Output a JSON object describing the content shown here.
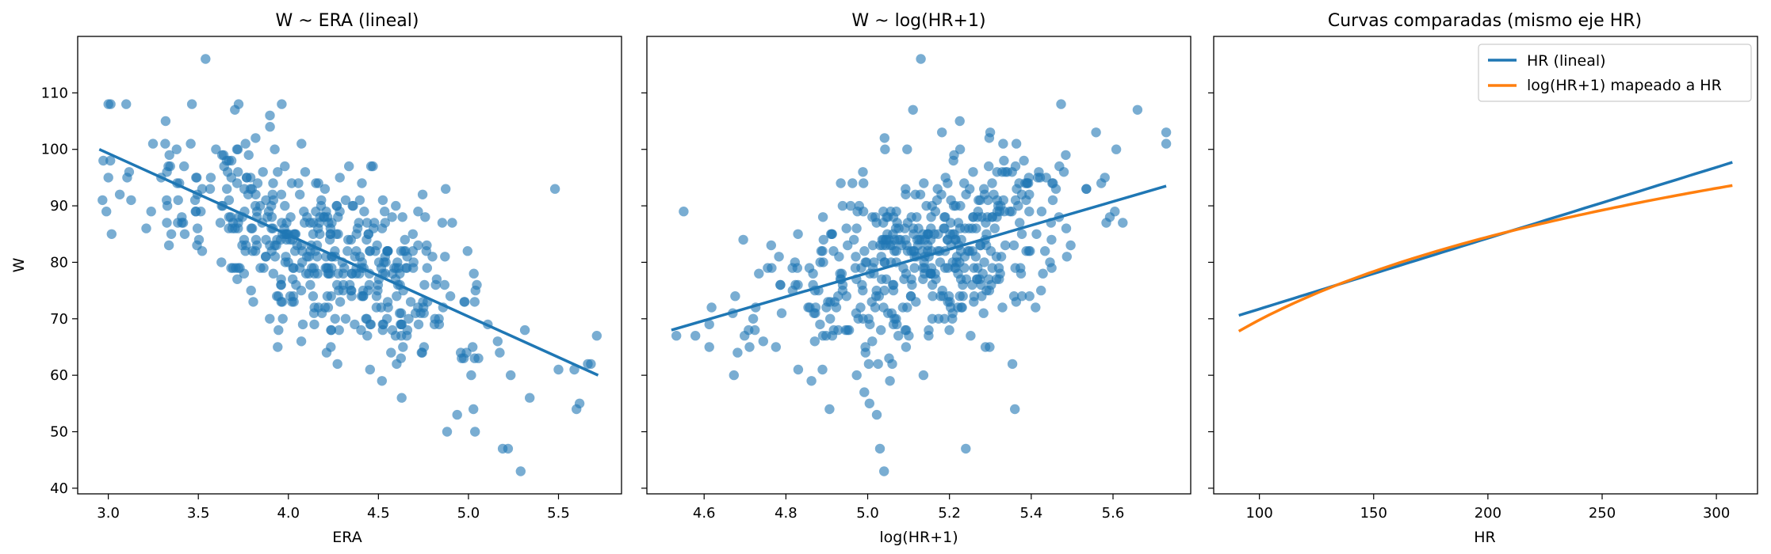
{
  "chart_data": [
    {
      "type": "scatter",
      "title": "W ~ ERA (lineal)",
      "xlabel": "ERA",
      "ylabel": "W",
      "xlim": [
        2.83,
        5.85
      ],
      "ylim": [
        39,
        120
      ],
      "xticks": [
        3.0,
        3.5,
        4.0,
        4.5,
        5.0,
        5.5
      ],
      "xtick_labels": [
        "3.0",
        "3.5",
        "4.0",
        "4.5",
        "5.0",
        "5.5"
      ],
      "yticks": [
        40,
        50,
        60,
        70,
        80,
        90,
        100,
        110
      ],
      "ytick_labels": [
        "40",
        "50",
        "60",
        "70",
        "80",
        "90",
        "100",
        "110"
      ],
      "point_color": "#1f77b4",
      "point_alpha": 0.6,
      "seed": 11,
      "n_points": 480,
      "x_range": [
        2.95,
        5.72
      ],
      "x_center": 4.2,
      "x_sd": 0.52,
      "fit_line": {
        "x": [
          2.95,
          5.72
        ],
        "y": [
          100,
          60
        ]
      },
      "noise_sd": 8,
      "outliers": [
        [
          3.54,
          116
        ],
        [
          5.19,
          47
        ],
        [
          5.22,
          47
        ],
        [
          5.29,
          43
        ],
        [
          5.68,
          62
        ],
        [
          5.6,
          54
        ]
      ],
      "grid": false
    },
    {
      "type": "scatter",
      "title": "W ~ log(HR+1)",
      "xlabel": "log(HR+1)",
      "ylabel": "",
      "xlim": [
        4.46,
        5.79
      ],
      "ylim": [
        39,
        120
      ],
      "xticks": [
        4.6,
        4.8,
        5.0,
        5.2,
        5.4,
        5.6
      ],
      "xtick_labels": [
        "4.6",
        "4.8",
        "5.0",
        "5.2",
        "5.4",
        "5.6"
      ],
      "yticks": [
        40,
        50,
        60,
        70,
        80,
        90,
        100,
        110
      ],
      "ytick_labels": [],
      "point_color": "#1f77b4",
      "point_alpha": 0.6,
      "seed": 23,
      "n_points": 480,
      "x_range": [
        4.52,
        5.73
      ],
      "x_center": 5.12,
      "x_sd": 0.2,
      "fit_line": {
        "x": [
          4.52,
          5.73
        ],
        "y": [
          68,
          93.5
        ]
      },
      "noise_sd": 8.5,
      "outliers": [
        [
          5.13,
          116
        ],
        [
          5.04,
          43
        ],
        [
          5.03,
          47
        ],
        [
          5.24,
          47
        ],
        [
          5.36,
          54
        ],
        [
          5.66,
          107
        ],
        [
          5.73,
          103
        ],
        [
          5.73,
          101
        ],
        [
          4.55,
          89
        ]
      ],
      "grid": false
    },
    {
      "type": "line",
      "title": "Curvas comparadas (mismo eje HR)",
      "xlabel": "HR",
      "ylabel": "",
      "xlim": [
        80,
        318
      ],
      "ylim": [
        39,
        120
      ],
      "xticks": [
        100,
        150,
        200,
        250,
        300
      ],
      "xtick_labels": [
        "100",
        "150",
        "200",
        "250",
        "300"
      ],
      "yticks": [
        40,
        50,
        60,
        70,
        80,
        90,
        100,
        110
      ],
      "ytick_labels": [],
      "legend_position": "top-right",
      "series": [
        {
          "name": "HR (lineal)",
          "color": "#1f77b4",
          "kind": "linear",
          "x": [
            91,
            307
          ],
          "y": [
            70.6,
            97.7
          ]
        },
        {
          "name": "log(HR+1) mapeado a HR",
          "color": "#ff7f0e",
          "kind": "log",
          "x": [
            91,
            307
          ],
          "y": [
            67.8,
            93.6
          ]
        }
      ],
      "grid": false
    }
  ]
}
